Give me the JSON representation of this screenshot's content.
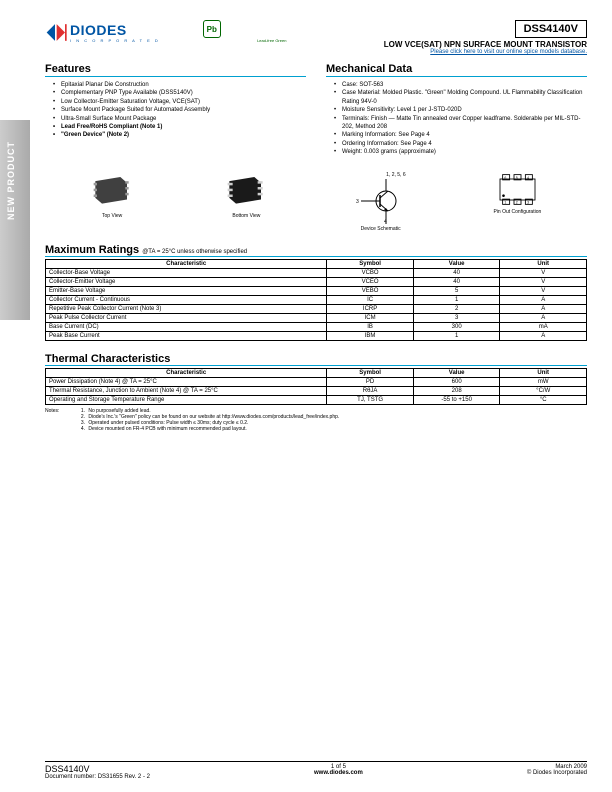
{
  "sidebar_text": "NEW PRODUCT",
  "logo": {
    "text": "DIODES",
    "sub": "I N C O R P O R A T E D"
  },
  "green": {
    "symbol": "Pb",
    "sub": "Lead-free Green"
  },
  "part": "DSS4140V",
  "subtitle": "LOW VCE(SAT) NPN SURFACE MOUNT TRANSISTOR",
  "linktext": "Please click here to visit our online spice models database.",
  "features": {
    "title": "Features",
    "items": [
      "Epitaxial Planar Die Construction",
      "Complementary PNP Type Available (DSS5140V)",
      "Low Collector-Emitter Saturation Voltage, VCE(SAT)",
      "Surface Mount Package Suited for Automated Assembly",
      "Ultra-Small Surface Mount Package",
      "Lead Free/RoHS Compliant (Note 1)",
      "\"Green Device\" (Note 2)"
    ],
    "bold_idx": [
      5,
      6
    ]
  },
  "mech": {
    "title": "Mechanical Data",
    "items": [
      "Case: SOT-563",
      "Case Material: Molded Plastic. \"Green\" Molding Compound.  UL Flammability Classification Rating 94V-0",
      "Moisture Sensitivity:  Level 1 per J-STD-020D",
      "Terminals: Finish — Matte Tin annealed over Copper leadframe. Solderable per MIL-STD-202, Method 208",
      "Marking Information: See Page 4",
      "Ordering Information: See Page 4",
      "Weight: 0.003 grams (approximate)"
    ]
  },
  "views": {
    "top": "Top View",
    "bottom": "Bottom View",
    "schematic": "Device Schematic",
    "pinout": "Pin Out Configuration",
    "pins": "1, 2, 5, 6",
    "pin3": "3",
    "pin4": "4"
  },
  "max_ratings": {
    "title": "Maximum Ratings",
    "cond": "@TA = 25°C unless otherwise specified",
    "headers": [
      "Characteristic",
      "Symbol",
      "Value",
      "Unit"
    ],
    "rows": [
      [
        "Collector-Base Voltage",
        "VCBO",
        "40",
        "V"
      ],
      [
        "Collector-Emitter Voltage",
        "VCEO",
        "40",
        "V"
      ],
      [
        "Emitter-Base Voltage",
        "VEBO",
        "5",
        "V"
      ],
      [
        "Collector Current - Continuous",
        "IC",
        "1",
        "A"
      ],
      [
        "Repetitive Peak Collector Current (Note 3)",
        "ICRP",
        "2",
        "A"
      ],
      [
        "Peak Pulse Collector Current",
        "ICM",
        "3",
        "A"
      ],
      [
        "Base Current (DC)",
        "IB",
        "300",
        "mA"
      ],
      [
        "Peak Base Current",
        "IBM",
        "1",
        "A"
      ]
    ]
  },
  "thermal": {
    "title": "Thermal Characteristics",
    "headers": [
      "Characteristic",
      "Symbol",
      "Value",
      "Unit"
    ],
    "rows": [
      [
        "Power Dissipation (Note 4)  @ TA = 25°C",
        "PD",
        "600",
        "mW"
      ],
      [
        "Thermal Resistance, Junction to Ambient (Note 4) @ TA = 25°C",
        "RθJA",
        "208",
        "°C/W"
      ],
      [
        "Operating and Storage Temperature Range",
        "TJ, TSTG",
        "-55 to +150",
        "°C"
      ]
    ]
  },
  "notes": {
    "label": "Notes:",
    "items": [
      "No purposefully added lead.",
      "Diode's Inc.'s \"Green\" policy can be found on our website at http://www.diodes.com/products/lead_free/index.php.",
      "Operated under pulsed conditions: Pulse width ≤ 30ms; duty cycle ≤ 0.2.",
      "Device mounted on FR-4 PCB with minimum recommended pad layout."
    ]
  },
  "footer": {
    "left1": "DSS4140V",
    "left2": "Document number: DS31655 Rev. 2 - 2",
    "mid1": "1 of 5",
    "mid2": "www.diodes.com",
    "right1": "March 2009",
    "right2": "© Diodes Incorporated"
  },
  "colors": {
    "accent": "#00a0d0",
    "brand": "#0055a4"
  },
  "col_widths": {
    "c1": "52%",
    "c2": "16%",
    "c3": "16%",
    "c4": "16%"
  }
}
